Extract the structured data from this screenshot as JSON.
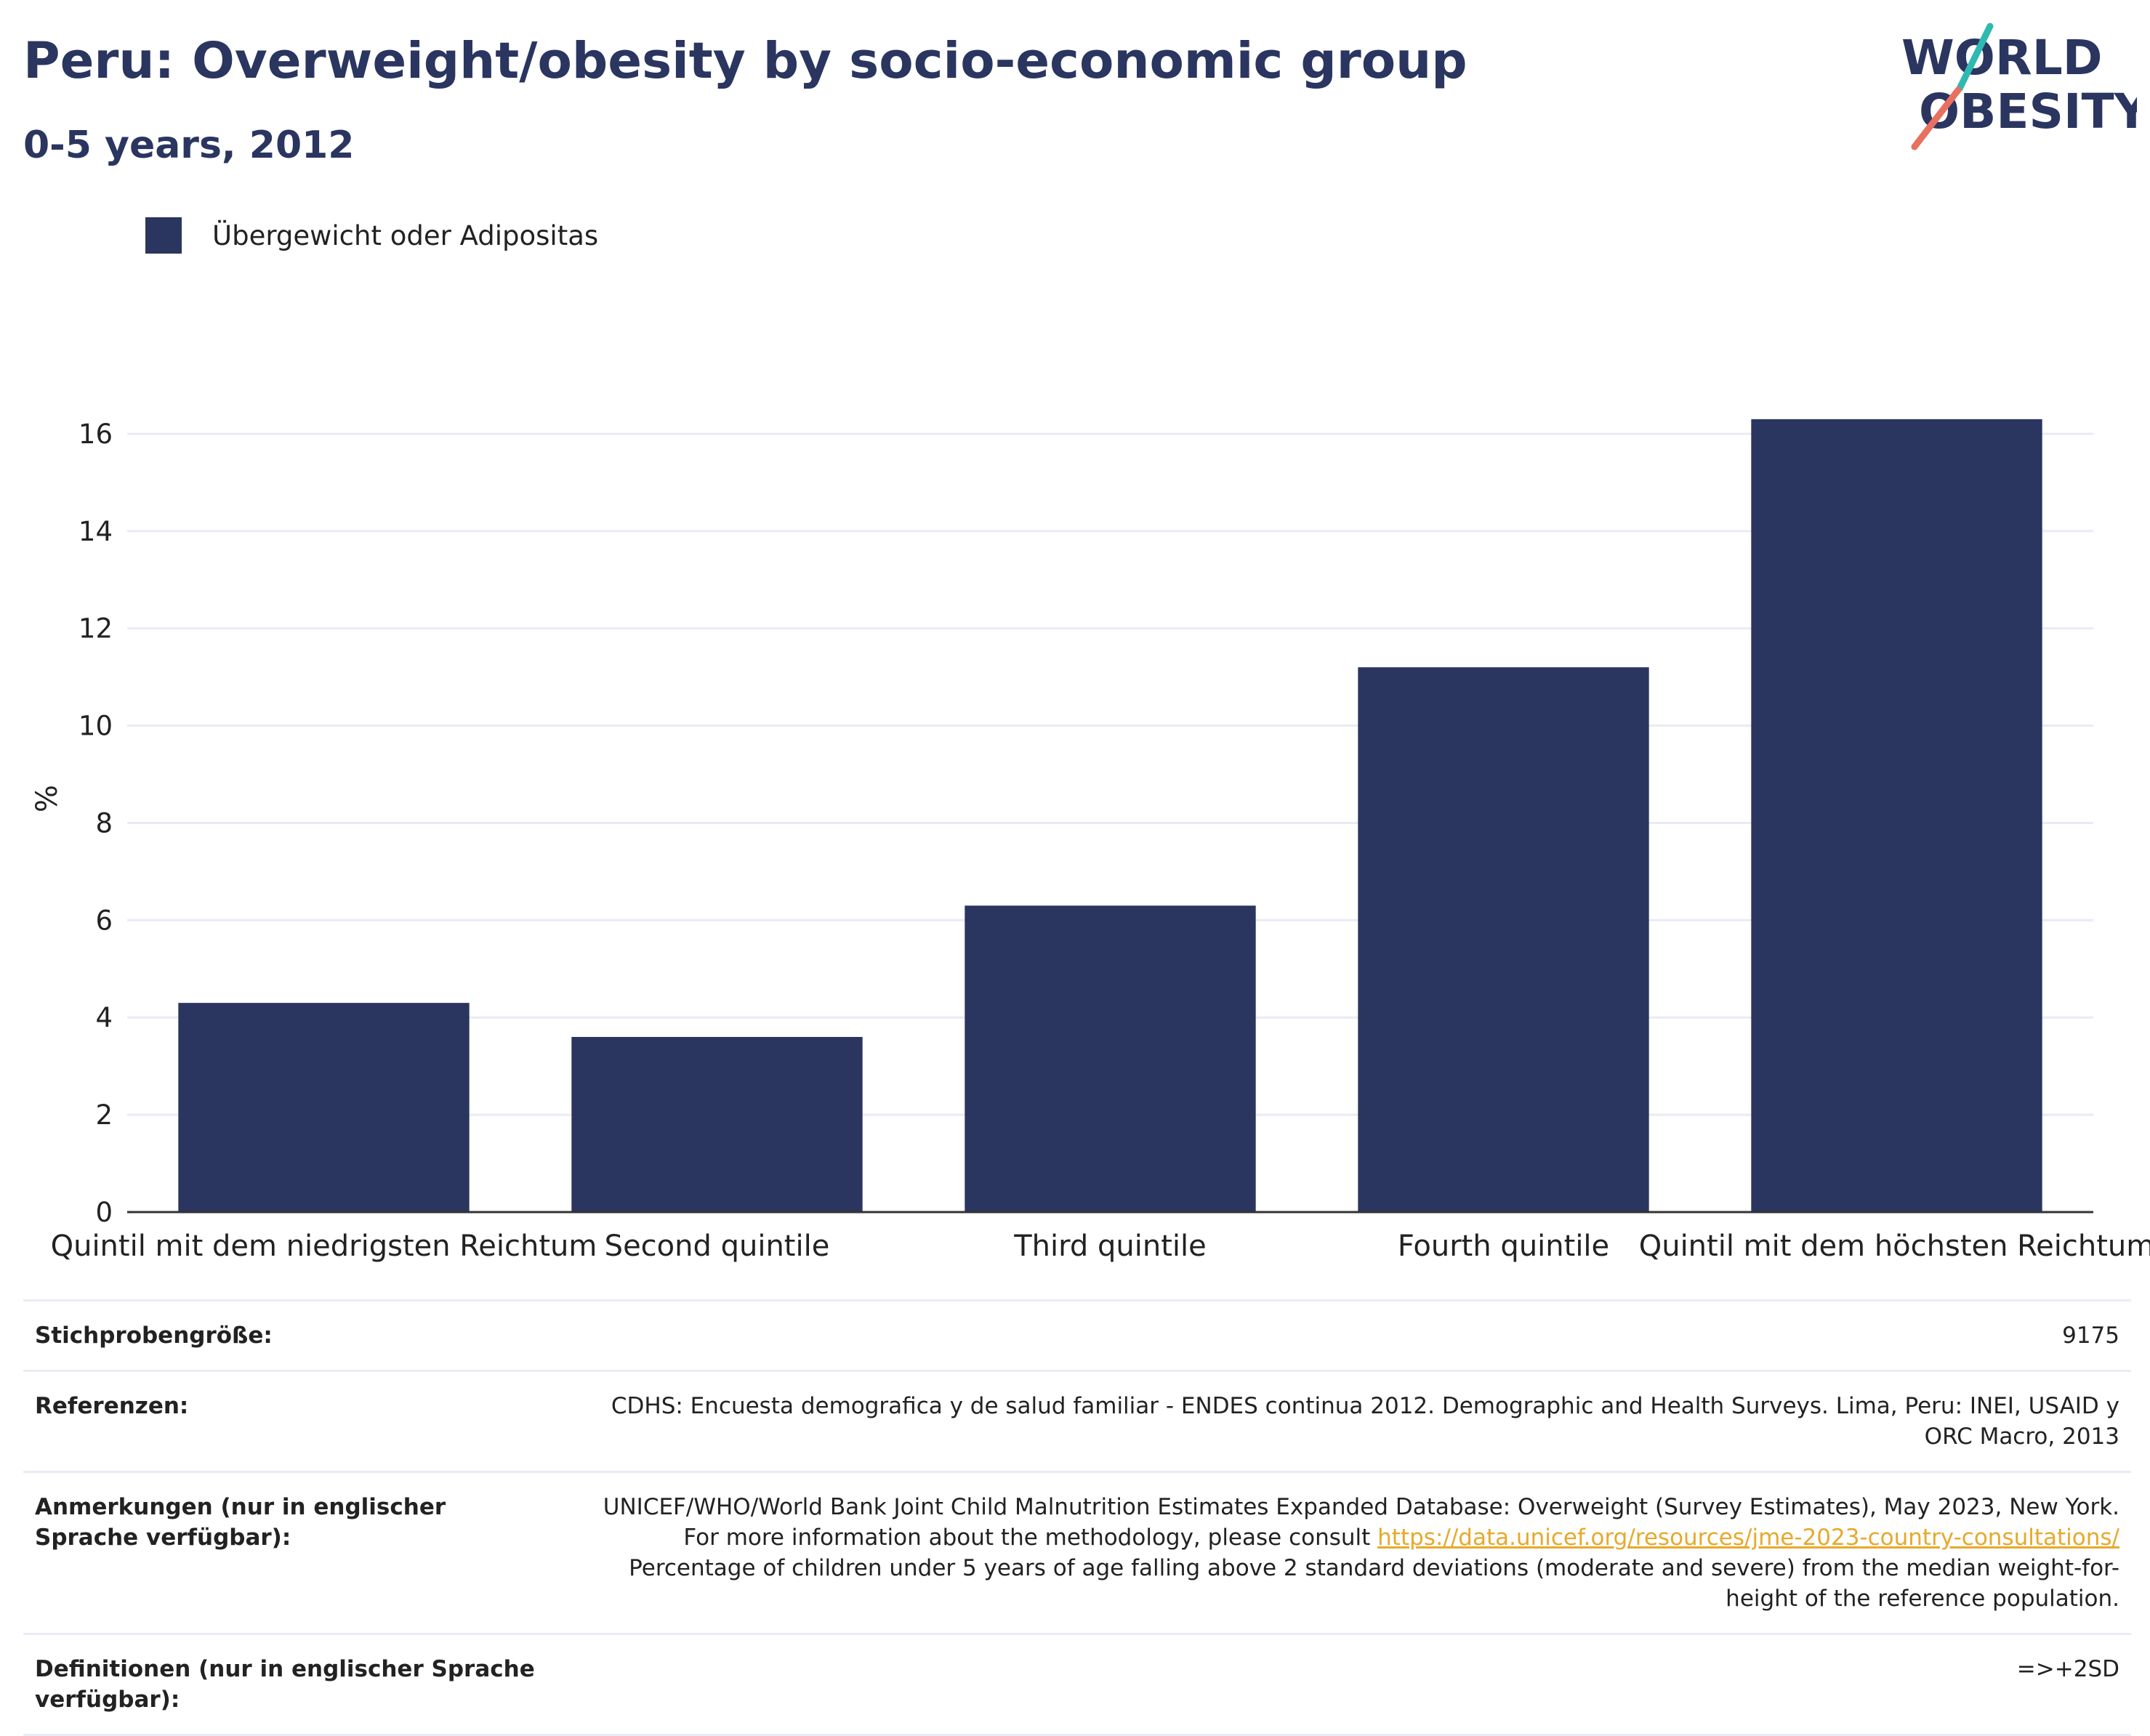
{
  "header": {
    "title": "Peru: Overweight/obesity by socio-economic group",
    "subtitle": "0-5 years, 2012"
  },
  "logo": {
    "line1": "WORLD",
    "line2": "OBESITY",
    "colors": {
      "navy": "#2a3560",
      "teal": "#2fb9b0",
      "coral": "#e8705f"
    }
  },
  "legend": {
    "label": "Übergewicht oder Adipositas",
    "color": "#2a3560"
  },
  "chart_data": {
    "type": "bar",
    "categories": [
      "Quintil mit dem niedrigsten Reichtum",
      "Second quintile",
      "Third quintile",
      "Fourth quintile",
      "Quintil mit dem höchsten Reichtum"
    ],
    "series": [
      {
        "name": "Übergewicht oder Adipositas",
        "values": [
          4.3,
          3.6,
          6.3,
          11.2,
          16.3
        ],
        "color": "#2a3560"
      }
    ],
    "ylabel": "%",
    "xlabel": "",
    "ylim": [
      0,
      17
    ],
    "yticks": [
      0,
      2,
      4,
      6,
      8,
      10,
      12,
      14,
      16
    ],
    "grid": true,
    "legend_position": "top-left"
  },
  "info": [
    {
      "label": "Stichprobengröße:",
      "value": "9175"
    },
    {
      "label": "Referenzen:",
      "value": "CDHS: Encuesta demografica y de salud familiar - ENDES continua 2012. Demographic and Health Surveys. Lima, Peru: INEI, USAID y ORC Macro, 2013"
    },
    {
      "label": "Anmerkungen (nur in englischer Sprache verfügbar):",
      "value_before": "UNICEF/WHO/World Bank Joint Child Malnutrition Estimates Expanded Database: Overweight (Survey Estimates), May 2023, New York. For more information about the methodology, please consult ",
      "link": "https://data.unicef.org/resources/jme-2023-country-consultations/",
      "value_after": " Percentage of children under 5 years of age falling above 2 standard deviations (moderate and severe) from the median weight-for-height of the reference population."
    },
    {
      "label": "Definitionen (nur in englischer Sprache verfügbar):",
      "value": "=>+2SD"
    }
  ]
}
